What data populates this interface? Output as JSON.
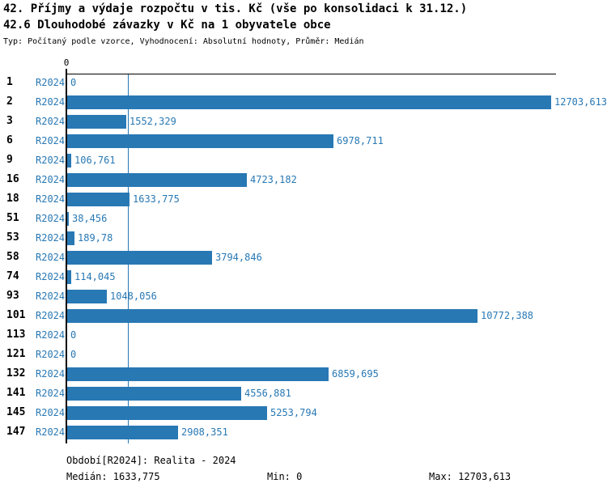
{
  "header": {
    "title": "42. Příjmy a výdaje rozpočtu v tis. Kč (vše po konsolidaci k 31.12.)",
    "subtitle": "42.6 Dlouhodobé závazky v Kč na 1 obyvatele obce",
    "meta": "Typ: Počítaný podle vzorce, Vyhodnocení: Absolutní hodnoty, Průměr: Medián"
  },
  "colors": {
    "bar": "#2878b4",
    "blue_text": "#2878b4",
    "axis": "#000000",
    "background": "#ffffff"
  },
  "chart_data": {
    "type": "bar",
    "orientation": "horizontal",
    "title": "42.6 Dlouhodobé závazky v Kč na 1 obyvatele obce",
    "xlabel": "",
    "ylabel": "",
    "categories": [
      "1",
      "2",
      "3",
      "6",
      "9",
      "16",
      "18",
      "51",
      "53",
      "58",
      "74",
      "93",
      "101",
      "113",
      "121",
      "132",
      "141",
      "145",
      "147"
    ],
    "series": [
      {
        "name": "R2024",
        "values": [
          0,
          12703.613,
          1552.329,
          6978.711,
          106.761,
          4723.182,
          1633.775,
          38.456,
          189.78,
          3794.846,
          114.045,
          1048.056,
          10772.388,
          0,
          0,
          6859.695,
          4556.881,
          5253.794,
          2908.351
        ]
      }
    ],
    "value_labels": [
      "0",
      "12703,613",
      "1552,329",
      "6978,711",
      "106,761",
      "4723,182",
      "1633,775",
      "38,456",
      "189,78",
      "3794,846",
      "114,045",
      "1048,056",
      "10772,388",
      "0",
      "0",
      "6859,695",
      "4556,881",
      "5253,794",
      "2908,351"
    ],
    "xlim": [
      0,
      12850
    ],
    "x_tick_labels": [
      "0"
    ],
    "median": 1633.775,
    "grid": "single vertical median line",
    "legend_position": "none"
  },
  "footer": {
    "period": "Období[R2024]: Realita - 2024",
    "median": "Medián: 1633,775",
    "min": "Min: 0",
    "max": "Max: 12703,613"
  }
}
